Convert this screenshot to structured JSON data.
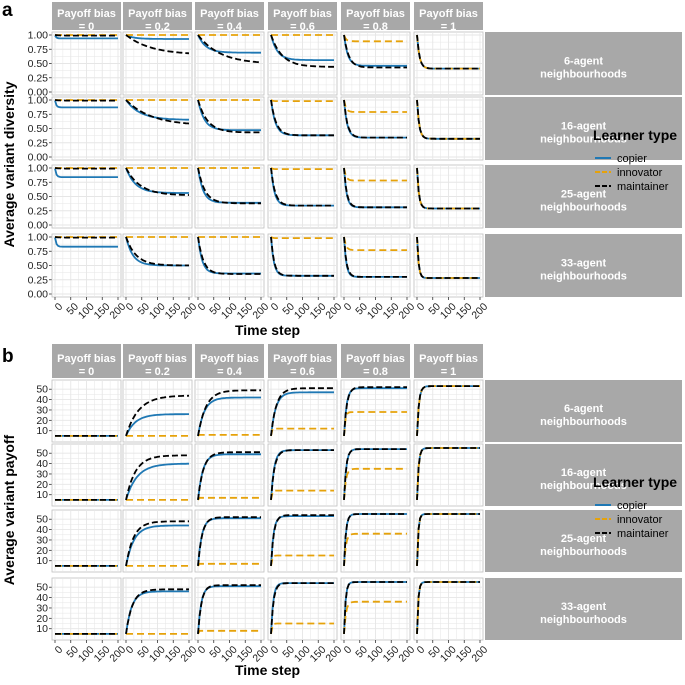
{
  "figure": {
    "legend_title": "Learner type",
    "strip_x_labels": [
      "Payoff bias|= 0",
      "Payoff bias|= 0.2",
      "Payoff bias|= 0.4",
      "Payoff bias|= 0.6",
      "Payoff bias|= 0.8",
      "Payoff bias|= 1"
    ],
    "strip_y_labels": [
      "6-agent|neighbourhoods",
      "16-agent|neighbourhoods",
      "25-agent|neighbourhoods",
      "33-agent|neighbourhoods"
    ],
    "colors": {
      "copier": "#1f78b4",
      "innovator": "#e6a20a",
      "maintainer": "#000000",
      "strip_bg": "#a8a8a8",
      "strip_text": "#ffffff",
      "grid": "#e6e6e6",
      "panel_border": "#bfbfbf"
    }
  },
  "chart_data": [
    {
      "panel": "a",
      "type": "line",
      "xlabel": "Time step",
      "ylabel": "Average variant diversity",
      "x_ticks": [
        0,
        50,
        100,
        150,
        200
      ],
      "xlim": [
        0,
        200
      ],
      "y_ticks": [
        0.0,
        0.25,
        0.5,
        0.75,
        1.0
      ],
      "y_tick_labels": [
        "0.00",
        "0.25",
        "0.50",
        "0.75",
        "1.00"
      ],
      "ylim": [
        0,
        1
      ],
      "grid": true,
      "legend": "right",
      "series_names": [
        "copier",
        "innovator",
        "maintainer"
      ],
      "curve_model": "y = final + (start - final) * exp(-t / tau), sampled every 10 time steps",
      "panels": [
        [
          {
            "copier": [
              0.99,
              0.94,
              4
            ],
            "innovator": [
              1.0,
              1.0,
              1
            ],
            "maintainer": [
              1.0,
              0.99,
              10
            ]
          },
          {
            "copier": [
              1.0,
              0.93,
              25
            ],
            "innovator": [
              1.0,
              1.0,
              1
            ],
            "maintainer": [
              1.0,
              0.65,
              80
            ]
          },
          {
            "copier": [
              1.0,
              0.69,
              25
            ],
            "innovator": [
              1.0,
              1.0,
              1
            ],
            "maintainer": [
              1.0,
              0.49,
              70
            ]
          },
          {
            "copier": [
              1.0,
              0.56,
              20
            ],
            "innovator": [
              1.0,
              1.0,
              1
            ],
            "maintainer": [
              1.0,
              0.44,
              35
            ]
          },
          {
            "copier": [
              1.0,
              0.46,
              12
            ],
            "innovator": [
              1.0,
              0.89,
              6
            ],
            "maintainer": [
              1.0,
              0.43,
              15
            ]
          },
          {
            "copier": [
              1.0,
              0.41,
              8
            ],
            "innovator": [
              1.0,
              0.41,
              8
            ],
            "maintainer": [
              1.0,
              0.41,
              8
            ]
          }
        ],
        [
          {
            "copier": [
              0.99,
              0.87,
              4
            ],
            "innovator": [
              1.0,
              1.0,
              1
            ],
            "maintainer": [
              1.0,
              0.99,
              10
            ]
          },
          {
            "copier": [
              1.0,
              0.65,
              45
            ],
            "innovator": [
              1.0,
              1.0,
              1
            ],
            "maintainer": [
              1.0,
              0.55,
              80
            ]
          },
          {
            "copier": [
              1.0,
              0.47,
              20
            ],
            "innovator": [
              1.0,
              1.0,
              1
            ],
            "maintainer": [
              1.0,
              0.43,
              30
            ]
          },
          {
            "copier": [
              1.0,
              0.38,
              14
            ],
            "innovator": [
              1.0,
              0.98,
              5
            ],
            "maintainer": [
              1.0,
              0.38,
              16
            ]
          },
          {
            "copier": [
              1.0,
              0.34,
              10
            ],
            "innovator": [
              1.0,
              0.79,
              6
            ],
            "maintainer": [
              1.0,
              0.34,
              11
            ]
          },
          {
            "copier": [
              1.0,
              0.32,
              7
            ],
            "innovator": [
              1.0,
              0.32,
              7
            ],
            "maintainer": [
              1.0,
              0.32,
              7
            ]
          }
        ],
        [
          {
            "copier": [
              0.99,
              0.84,
              4
            ],
            "innovator": [
              1.0,
              1.0,
              1
            ],
            "maintainer": [
              1.0,
              0.99,
              10
            ]
          },
          {
            "copier": [
              1.0,
              0.56,
              30
            ],
            "innovator": [
              1.0,
              1.0,
              1
            ],
            "maintainer": [
              1.0,
              0.52,
              45
            ]
          },
          {
            "copier": [
              1.0,
              0.39,
              16
            ],
            "innovator": [
              1.0,
              1.0,
              1
            ],
            "maintainer": [
              1.0,
              0.38,
              22
            ]
          },
          {
            "copier": [
              1.0,
              0.34,
              11
            ],
            "innovator": [
              1.0,
              0.98,
              5
            ],
            "maintainer": [
              1.0,
              0.34,
              13
            ]
          },
          {
            "copier": [
              1.0,
              0.31,
              8
            ],
            "innovator": [
              1.0,
              0.78,
              6
            ],
            "maintainer": [
              1.0,
              0.31,
              9
            ]
          },
          {
            "copier": [
              1.0,
              0.29,
              6
            ],
            "innovator": [
              1.0,
              0.29,
              6
            ],
            "maintainer": [
              1.0,
              0.29,
              6
            ]
          }
        ],
        [
          {
            "copier": [
              0.99,
              0.83,
              4
            ],
            "innovator": [
              1.0,
              1.0,
              1
            ],
            "maintainer": [
              1.0,
              0.99,
              10
            ]
          },
          {
            "copier": [
              1.0,
              0.5,
              22
            ],
            "innovator": [
              1.0,
              1.0,
              1
            ],
            "maintainer": [
              1.0,
              0.5,
              32
            ]
          },
          {
            "copier": [
              1.0,
              0.36,
              13
            ],
            "innovator": [
              1.0,
              1.0,
              1
            ],
            "maintainer": [
              1.0,
              0.35,
              17
            ]
          },
          {
            "copier": [
              1.0,
              0.32,
              9
            ],
            "innovator": [
              1.0,
              0.98,
              5
            ],
            "maintainer": [
              1.0,
              0.32,
              10
            ]
          },
          {
            "copier": [
              1.0,
              0.3,
              7
            ],
            "innovator": [
              1.0,
              0.77,
              6
            ],
            "maintainer": [
              1.0,
              0.3,
              8
            ]
          },
          {
            "copier": [
              1.0,
              0.28,
              5
            ],
            "innovator": [
              1.0,
              0.28,
              5
            ],
            "maintainer": [
              1.0,
              0.28,
              5
            ]
          }
        ]
      ]
    },
    {
      "panel": "b",
      "type": "line",
      "xlabel": "Time step",
      "ylabel": "Average variant payoff",
      "x_ticks": [
        0,
        50,
        100,
        150,
        200
      ],
      "xlim": [
        0,
        200
      ],
      "y_ticks": [
        10,
        20,
        30,
        40,
        50
      ],
      "y_tick_labels": [
        "10",
        "20",
        "30",
        "40",
        "50"
      ],
      "ylim": [
        2,
        56
      ],
      "grid": true,
      "legend": "right",
      "series_names": [
        "copier",
        "innovator",
        "maintainer"
      ],
      "curve_model": "y = final + (start - final) * exp(-t / tau), sampled every 10 time steps",
      "panels": [
        [
          {
            "copier": [
              5,
              5,
              1
            ],
            "innovator": [
              5,
              5,
              1
            ],
            "maintainer": [
              5,
              5,
              1
            ]
          },
          {
            "copier": [
              5,
              26,
              30
            ],
            "innovator": [
              5,
              5,
              1
            ],
            "maintainer": [
              5,
              44,
              40
            ]
          },
          {
            "copier": [
              5,
              42,
              20
            ],
            "innovator": [
              5,
              6,
              1
            ],
            "maintainer": [
              5,
              49,
              25
            ]
          },
          {
            "copier": [
              5,
              47,
              15
            ],
            "innovator": [
              5,
              12,
              1
            ],
            "maintainer": [
              5,
              51,
              17
            ]
          },
          {
            "copier": [
              5,
              51,
              8
            ],
            "innovator": [
              5,
              28,
              4
            ],
            "maintainer": [
              5,
              52,
              9
            ]
          },
          {
            "copier": [
              5,
              53,
              6
            ],
            "innovator": [
              5,
              53,
              6
            ],
            "maintainer": [
              5,
              53,
              6
            ]
          }
        ],
        [
          {
            "copier": [
              5,
              5,
              1
            ],
            "innovator": [
              5,
              5,
              1
            ],
            "maintainer": [
              5,
              5,
              1
            ]
          },
          {
            "copier": [
              5,
              40,
              35
            ],
            "innovator": [
              5,
              5,
              1
            ],
            "maintainer": [
              5,
              48,
              30
            ]
          },
          {
            "copier": [
              5,
              49,
              15
            ],
            "innovator": [
              5,
              7,
              1
            ],
            "maintainer": [
              5,
              51,
              17
            ]
          },
          {
            "copier": [
              5,
              53,
              10
            ],
            "innovator": [
              5,
              14,
              3
            ],
            "maintainer": [
              5,
              53,
              11
            ]
          },
          {
            "copier": [
              5,
              54,
              7
            ],
            "innovator": [
              5,
              35,
              6
            ],
            "maintainer": [
              5,
              54,
              7
            ]
          },
          {
            "copier": [
              5,
              55,
              5
            ],
            "innovator": [
              5,
              55,
              5
            ],
            "maintainer": [
              5,
              55,
              5
            ]
          }
        ],
        [
          {
            "copier": [
              5,
              5,
              1
            ],
            "innovator": [
              5,
              5,
              1
            ],
            "maintainer": [
              5,
              5,
              1
            ]
          },
          {
            "copier": [
              5,
              44,
              25
            ],
            "innovator": [
              5,
              5,
              1
            ],
            "maintainer": [
              5,
              48,
              24
            ]
          },
          {
            "copier": [
              5,
              51,
              12
            ],
            "innovator": [
              5,
              7,
              1
            ],
            "maintainer": [
              5,
              52,
              13
            ]
          },
          {
            "copier": [
              5,
              53,
              8
            ],
            "innovator": [
              5,
              15,
              3
            ],
            "maintainer": [
              5,
              54,
              9
            ]
          },
          {
            "copier": [
              5,
              55,
              6
            ],
            "innovator": [
              5,
              36,
              6
            ],
            "maintainer": [
              5,
              55,
              6
            ]
          },
          {
            "copier": [
              5,
              55,
              4
            ],
            "innovator": [
              5,
              55,
              4
            ],
            "maintainer": [
              5,
              55,
              4
            ]
          }
        ],
        [
          {
            "copier": [
              5,
              5,
              1
            ],
            "innovator": [
              5,
              5,
              1
            ],
            "maintainer": [
              5,
              5,
              1
            ]
          },
          {
            "copier": [
              5,
              46,
              18
            ],
            "innovator": [
              5,
              5,
              1
            ],
            "maintainer": [
              5,
              48,
              20
            ]
          },
          {
            "copier": [
              5,
              51,
              10
            ],
            "innovator": [
              5,
              8,
              1
            ],
            "maintainer": [
              5,
              52,
              11
            ]
          },
          {
            "copier": [
              5,
              54,
              7
            ],
            "innovator": [
              5,
              15,
              3
            ],
            "maintainer": [
              5,
              54,
              8
            ]
          },
          {
            "copier": [
              5,
              55,
              5
            ],
            "innovator": [
              5,
              36,
              6
            ],
            "maintainer": [
              5,
              55,
              5
            ]
          },
          {
            "copier": [
              5,
              55,
              4
            ],
            "innovator": [
              5,
              55,
              4
            ],
            "maintainer": [
              5,
              55,
              4
            ]
          }
        ]
      ]
    }
  ]
}
